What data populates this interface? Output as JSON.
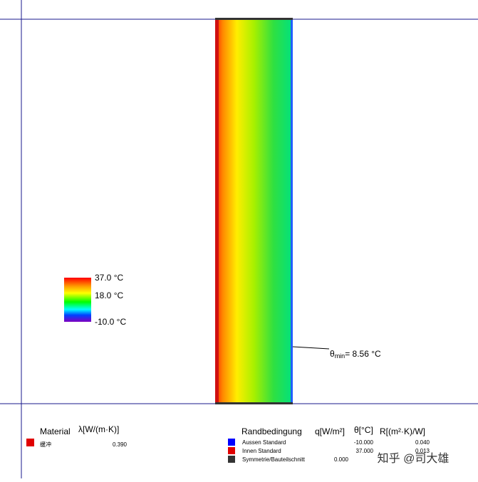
{
  "scale": {
    "labels": [
      "37.0 °C",
      "18.0 °C",
      "-10.0 °C"
    ]
  },
  "minimum": {
    "symbol": "θ",
    "subscript": "min",
    "text": "= 8.56 °C"
  },
  "material": {
    "title": "Material",
    "column": "λ[W/(m·K)]",
    "rows": [
      [
        "缓冲",
        "0.390"
      ]
    ]
  },
  "boundary": {
    "title": "Randbedingung",
    "columns": [
      "q[W/m²]",
      "θ[°C]",
      "R[(m²·K)/W]"
    ],
    "rows": [
      [
        "Aussen Standard",
        "",
        "-10.000",
        "0.040"
      ],
      [
        "Innen Standard",
        "",
        "37.000",
        "0.013"
      ],
      [
        "Symmetrie/Bauteilschnitt",
        "0.000",
        "",
        ""
      ]
    ]
  },
  "watermark": "知乎 @司大雄"
}
